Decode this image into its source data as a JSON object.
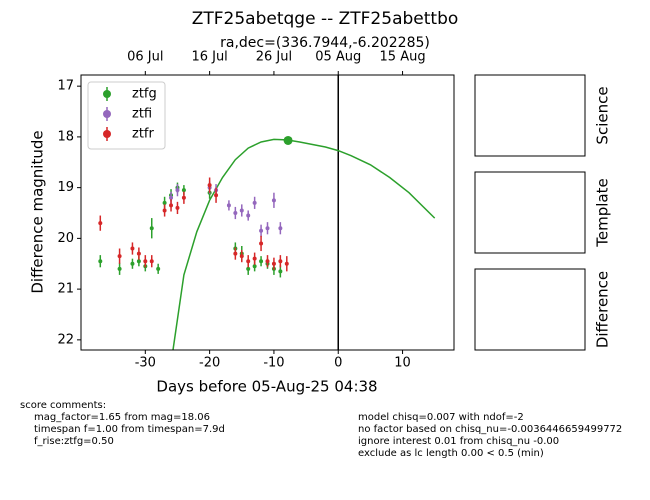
{
  "chart_data": {
    "type": "errorbar",
    "title": "ZTF25abetqge -- ZTF25abettbo",
    "subtitle": "ra,dec=(336.7944,-6.202285)",
    "x_label": "Days before 05-Aug-25 04:38",
    "y_label": "Difference magnitude",
    "xlim": [
      -40,
      18
    ],
    "ylim": [
      16.78,
      22.2
    ],
    "y_inverted": true,
    "xticks": [
      -30,
      -20,
      -10,
      0,
      10
    ],
    "yticks": [
      17,
      18,
      19,
      20,
      21,
      22
    ],
    "top_xticks": [
      {
        "value": -30,
        "label": "06 Jul"
      },
      {
        "value": -20,
        "label": "16 Jul"
      },
      {
        "value": -10,
        "label": "26 Jul"
      },
      {
        "value": 0,
        "label": "05 Aug"
      },
      {
        "value": 10,
        "label": "15 Aug"
      }
    ],
    "vline": 0,
    "legend": "upper left",
    "series": [
      {
        "name": "ztfg",
        "color": "#2ca02c",
        "x": [
          -37,
          -34,
          -32,
          -31,
          -30,
          -29,
          -28,
          -27,
          -26,
          -25,
          -24,
          -20,
          -16,
          -15,
          -14,
          -13,
          -12,
          -11,
          -10,
          -9
        ],
        "values": [
          20.45,
          20.6,
          20.5,
          20.45,
          20.55,
          19.8,
          20.6,
          19.3,
          19.15,
          19.0,
          19.05,
          19.1,
          20.2,
          20.3,
          20.6,
          20.55,
          20.45,
          20.5,
          20.6,
          20.65
        ],
        "errors": [
          0.12,
          0.12,
          0.1,
          0.1,
          0.1,
          0.2,
          0.1,
          0.12,
          0.12,
          0.1,
          0.1,
          0.12,
          0.12,
          0.15,
          0.12,
          0.1,
          0.1,
          0.1,
          0.12,
          0.12
        ]
      },
      {
        "name": "ztfi",
        "color": "#9467bd",
        "x": [
          -26,
          -25,
          -20,
          -19,
          -17,
          -16,
          -15,
          -14,
          -13,
          -12,
          -11,
          -10,
          -9
        ],
        "values": [
          19.2,
          19.05,
          19.0,
          19.05,
          19.35,
          19.5,
          19.45,
          19.55,
          19.3,
          19.85,
          19.8,
          19.25,
          19.8
        ],
        "errors": [
          0.12,
          0.12,
          0.12,
          0.12,
          0.1,
          0.12,
          0.12,
          0.1,
          0.12,
          0.12,
          0.12,
          0.15,
          0.12
        ]
      },
      {
        "name": "ztfr",
        "color": "#d62728",
        "x": [
          -37,
          -34,
          -32,
          -31,
          -30,
          -29,
          -27,
          -26,
          -25,
          -24,
          -20,
          -19,
          -16,
          -15,
          -14,
          -13,
          -12,
          -11,
          -10,
          -9,
          -8
        ],
        "values": [
          19.7,
          20.35,
          20.2,
          20.3,
          20.45,
          20.45,
          19.45,
          19.35,
          19.4,
          19.2,
          18.95,
          19.15,
          20.3,
          20.35,
          20.45,
          20.4,
          20.1,
          20.45,
          20.5,
          20.45,
          20.5
        ],
        "errors": [
          0.15,
          0.15,
          0.12,
          0.12,
          0.12,
          0.12,
          0.12,
          0.12,
          0.12,
          0.12,
          0.15,
          0.15,
          0.12,
          0.12,
          0.12,
          0.12,
          0.15,
          0.12,
          0.12,
          0.12,
          0.15
        ]
      }
    ],
    "model": {
      "color": "#2ca02c",
      "x": [
        -25.7,
        -24,
        -22,
        -20,
        -18,
        -16,
        -14,
        -12,
        -10,
        -8,
        -6,
        -4,
        -2,
        0,
        2,
        5,
        8,
        11,
        15
      ],
      "values": [
        22.2,
        20.72,
        19.87,
        19.25,
        18.8,
        18.45,
        18.22,
        18.1,
        18.05,
        18.06,
        18.1,
        18.15,
        18.2,
        18.27,
        18.37,
        18.55,
        18.8,
        19.1,
        19.6
      ]
    },
    "peak": {
      "color": "#2ca02c",
      "x": -7.8,
      "value": 18.07
    },
    "panels": [
      "Science",
      "Template",
      "Difference"
    ],
    "comments_left": [
      "score comments:",
      "mag_factor=1.65 from mag=18.06",
      "timespan f=1.00 from timespan=7.9d",
      "f_rise:ztfg=0.50"
    ],
    "comments_right": [
      "model chisq=0.007 with ndof=-2",
      "no factor based on chisq_nu=-0.0036446659499772",
      "ignore interest 0.01 from chisq_nu -0.00",
      "exclude as lc length 0.00 < 0.5 (min)"
    ]
  }
}
